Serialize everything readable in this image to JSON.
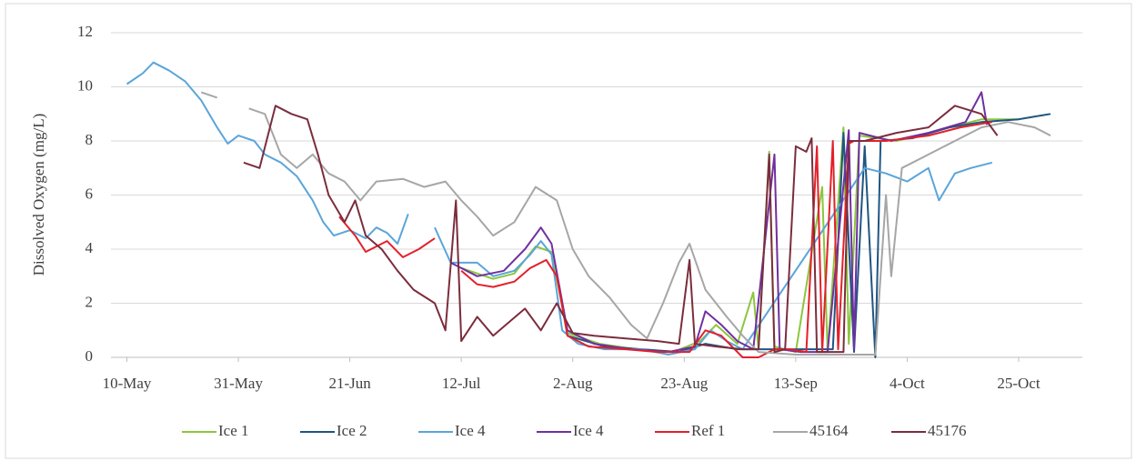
{
  "chart_data": {
    "type": "line",
    "y_label": "Dissolved Oxygen (mg/L)",
    "xlim": [
      "7-May",
      "6-Nov"
    ],
    "xticks": [
      "10-May",
      "31-May",
      "21-Jun",
      "12-Jul",
      "2-Aug",
      "23-Aug",
      "13-Sep",
      "4-Oct",
      "25-Oct"
    ],
    "ylim": [
      0,
      12
    ],
    "yticks": [
      0,
      2,
      4,
      6,
      8,
      10,
      12
    ],
    "grid": true,
    "legend": "bottom",
    "series": [
      {
        "name": "Ice 1",
        "color": "#8cc63e",
        "x": [
          "12-Jul",
          "18-Jul",
          "22-Jul",
          "26-Jul",
          "29-Jul",
          "1-Aug",
          "7-Aug",
          "14-Aug",
          "21-Aug",
          "26-Aug",
          "29-Aug",
          "2-Sep",
          "5-Sep",
          "6-Sep",
          "8-Sep",
          "9-Sep",
          "13-Sep",
          "18-Sep",
          "19-Sep",
          "22-Sep",
          "23-Sep",
          "25-Sep",
          "2-Oct",
          "10-Oct",
          "18-Oct",
          "25-Oct",
          "28-Oct"
        ],
        "values": [
          3.3,
          2.9,
          3.1,
          4.1,
          3.9,
          0.9,
          0.5,
          0.3,
          0.2,
          0.6,
          1.2,
          0.5,
          2.4,
          0.3,
          7.6,
          0.4,
          0.2,
          6.3,
          0.2,
          8.5,
          0.5,
          8.2,
          8.0,
          8.4,
          8.8,
          8.8,
          8.9
        ]
      },
      {
        "name": "Ice 2",
        "color": "#1f5582",
        "x": [
          "1-Aug",
          "8-Aug",
          "15-Aug",
          "22-Aug",
          "27-Aug",
          "2-Sep",
          "8-Sep",
          "15-Sep",
          "20-Sep",
          "22-Sep",
          "24-Sep",
          "26-Sep",
          "28-Sep",
          "29-Sep",
          "5-Oct",
          "12-Oct",
          "18-Oct",
          "25-Oct",
          "31-Oct"
        ],
        "values": [
          0.8,
          0.4,
          0.3,
          0.2,
          0.5,
          0.3,
          0.3,
          0.3,
          0.3,
          8.3,
          0.2,
          7.8,
          0.0,
          8.0,
          8.1,
          8.5,
          8.7,
          8.8,
          9.0
        ]
      },
      {
        "name": "Ice 4",
        "color": "#5aa5da",
        "x": [
          "10-May",
          "13-May",
          "15-May",
          "18-May",
          "21-May",
          "24-May",
          "27-May",
          "29-May",
          "31-May",
          "3-Jun",
          "5-Jun",
          "8-Jun",
          "11-Jun",
          "14-Jun",
          "16-Jun",
          "18-Jun",
          "21-Jun",
          "24-Jun",
          "26-Jun",
          "28-Jun",
          "30-Jun",
          "2-Jul",
          "4-Jul",
          "7-Jul",
          "10-Jul",
          "15-Jul",
          "18-Jul",
          "22-Jul",
          "25-Jul",
          "27-Jul",
          "29-Jul",
          "31-Jul",
          "3-Aug",
          "8-Aug",
          "15-Aug",
          "20-Aug",
          "25-Aug",
          "28-Aug",
          "31-Aug",
          "3-Sep",
          "26-Sep",
          "30-Sep",
          "4-Oct",
          "8-Oct",
          "10-Oct",
          "13-Oct",
          "16-Oct",
          "20-Oct"
        ],
        "values": [
          10.1,
          10.5,
          10.9,
          10.6,
          10.2,
          9.5,
          8.5,
          7.9,
          8.2,
          8.0,
          7.5,
          7.2,
          6.7,
          5.8,
          5.0,
          4.5,
          4.7,
          4.4,
          4.8,
          4.6,
          4.2,
          5.3,
          null,
          4.8,
          3.5,
          3.5,
          3.0,
          3.2,
          3.8,
          4.3,
          3.8,
          1.0,
          0.5,
          0.3,
          0.3,
          0.1,
          0.3,
          1.0,
          0.6,
          0.3,
          7.0,
          6.8,
          6.5,
          7.0,
          5.8,
          6.8,
          7.0,
          7.2
        ]
      },
      {
        "name": "Ice 4",
        "color": "#7030a0",
        "x": [
          "10-Jul",
          "15-Jul",
          "20-Jul",
          "24-Jul",
          "27-Jul",
          "29-Jul",
          "1-Aug",
          "6-Aug",
          "13-Aug",
          "20-Aug",
          "25-Aug",
          "27-Aug",
          "30-Aug",
          "2-Sep",
          "5-Sep",
          "9-Sep",
          "10-Sep",
          "14-Sep",
          "19-Sep",
          "23-Sep",
          "24-Sep",
          "25-Sep",
          "1-Oct",
          "8-Oct",
          "15-Oct",
          "18-Oct",
          "19-Oct"
        ],
        "values": [
          3.5,
          3.0,
          3.2,
          4.0,
          4.8,
          4.2,
          1.0,
          0.5,
          0.3,
          0.2,
          0.4,
          1.7,
          1.2,
          0.6,
          0.3,
          7.5,
          0.3,
          0.2,
          0.2,
          8.4,
          0.3,
          8.3,
          8.0,
          8.3,
          8.7,
          9.8,
          8.6
        ]
      },
      {
        "name": "Ref 1",
        "color": "#e3202a",
        "x": [
          "19-Jun",
          "22-Jun",
          "24-Jun",
          "28-Jun",
          "1-Jul",
          "4-Jul",
          "7-Jul",
          "9-Jul",
          "12-Jul",
          "15-Jul",
          "18-Jul",
          "22-Jul",
          "25-Jul",
          "28-Jul",
          "30-Jul",
          "1-Aug",
          "5-Aug",
          "12-Aug",
          "18-Aug",
          "24-Aug",
          "27-Aug",
          "30-Aug",
          "3-Sep",
          "6-Sep",
          "9-Sep",
          "12-Sep",
          "15-Sep",
          "17-Sep",
          "18-Sep",
          "20-Sep",
          "21-Sep",
          "23-Sep",
          "24-Sep",
          "30-Sep",
          "8-Oct",
          "14-Oct",
          "20-Oct"
        ],
        "values": [
          5.2,
          4.5,
          3.9,
          4.3,
          3.7,
          4.0,
          4.4,
          null,
          3.2,
          2.7,
          2.6,
          2.8,
          3.3,
          3.6,
          3.0,
          0.8,
          0.4,
          0.3,
          0.2,
          0.2,
          1.0,
          0.8,
          0.0,
          0.0,
          0.3,
          0.3,
          0.2,
          7.8,
          0.2,
          8.0,
          0.3,
          7.9,
          8.0,
          8.0,
          8.2,
          8.5,
          8.7
        ]
      },
      {
        "name": "45164",
        "color": "#a6a6a6",
        "x": [
          "24-May",
          "27-May",
          "30-May",
          "2-Jun",
          "5-Jun",
          "8-Jun",
          "11-Jun",
          "14-Jun",
          "17-Jun",
          "20-Jun",
          "23-Jun",
          "26-Jun",
          "1-Jul",
          "5-Jul",
          "9-Jul",
          "12-Jul",
          "15-Jul",
          "18-Jul",
          "22-Jul",
          "26-Jul",
          "30-Jul",
          "2-Aug",
          "5-Aug",
          "9-Aug",
          "13-Aug",
          "16-Aug",
          "19-Aug",
          "22-Aug",
          "24-Aug",
          "27-Aug",
          "31-Aug",
          "3-Sep",
          "6-Sep",
          "13-Sep",
          "20-Sep",
          "28-Sep",
          "30-Sep",
          "1-Oct",
          "3-Oct",
          "8-Oct",
          "13-Oct",
          "18-Oct",
          "23-Oct",
          "28-Oct",
          "31-Oct"
        ],
        "values": [
          9.8,
          9.6,
          null,
          9.2,
          9.0,
          7.5,
          7.0,
          7.5,
          6.8,
          6.5,
          5.8,
          6.5,
          6.6,
          6.3,
          6.5,
          5.8,
          5.2,
          4.5,
          5.0,
          6.3,
          5.8,
          4.0,
          3.0,
          2.2,
          1.2,
          0.7,
          2.0,
          3.5,
          4.2,
          2.5,
          1.5,
          0.8,
          0.2,
          0.1,
          0.1,
          0.1,
          6.0,
          3.0,
          7.0,
          7.5,
          8.0,
          8.5,
          8.7,
          8.5,
          8.2
        ]
      },
      {
        "name": "45176",
        "color": "#7b2d3d",
        "x": [
          "1-Jun",
          "4-Jun",
          "7-Jun",
          "10-Jun",
          "13-Jun",
          "15-Jun",
          "17-Jun",
          "20-Jun",
          "22-Jun",
          "24-Jun",
          "27-Jun",
          "30-Jun",
          "3-Jul",
          "7-Jul",
          "9-Jul",
          "11-Jul",
          "12-Jul",
          "15-Jul",
          "18-Jul",
          "21-Jul",
          "24-Jul",
          "27-Jul",
          "30-Jul",
          "2-Aug",
          "6-Aug",
          "12-Aug",
          "18-Aug",
          "22-Aug",
          "24-Aug",
          "25-Aug",
          "29-Aug",
          "3-Sep",
          "6-Sep",
          "8-Sep",
          "9-Sep",
          "11-Sep",
          "13-Sep",
          "15-Sep",
          "16-Sep",
          "17-Sep",
          "22-Sep",
          "23-Sep",
          "26-Sep",
          "2-Oct",
          "8-Oct",
          "13-Oct",
          "18-Oct",
          "21-Oct"
        ],
        "values": [
          7.2,
          7.0,
          9.3,
          9.0,
          8.8,
          7.5,
          6.0,
          5.0,
          5.8,
          4.5,
          4.0,
          3.2,
          2.5,
          2.0,
          1.0,
          5.8,
          0.6,
          1.5,
          0.8,
          1.3,
          1.8,
          1.0,
          2.0,
          0.9,
          0.8,
          0.7,
          0.6,
          0.5,
          3.6,
          0.5,
          0.4,
          0.3,
          0.3,
          7.5,
          0.2,
          0.3,
          7.8,
          7.6,
          8.1,
          0.2,
          0.2,
          8.0,
          8.0,
          8.3,
          8.5,
          9.3,
          9.0,
          8.2
        ]
      }
    ]
  }
}
